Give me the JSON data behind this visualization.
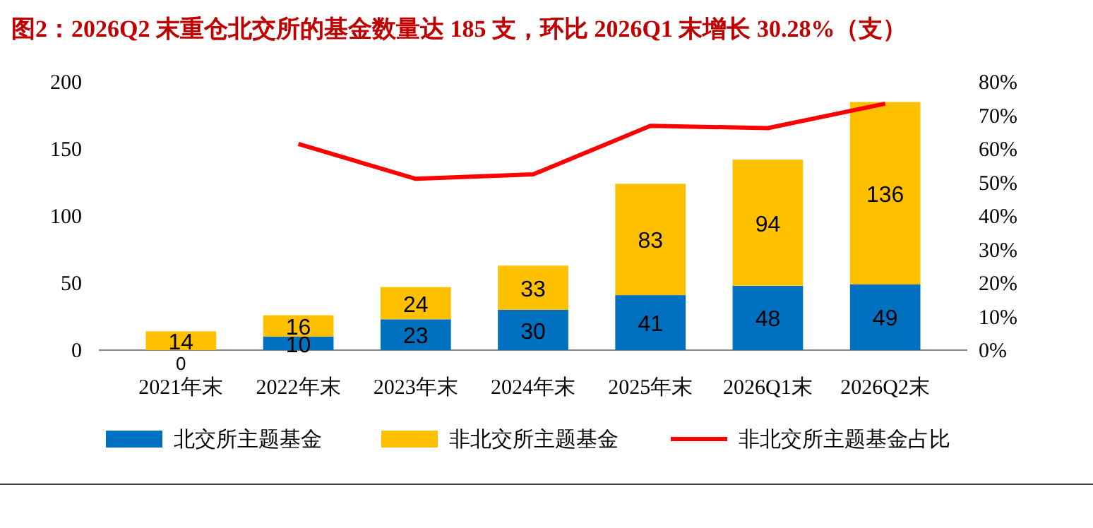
{
  "chart_data": {
    "type": "bar",
    "title": "图2：2026Q2 末重仓北交所的基金数量达 185 支，环比 2026Q1 末增长 30.28%（支）",
    "categories": [
      "2021年末",
      "2022年末",
      "2023年末",
      "2024年末",
      "2025年末",
      "2026Q1末",
      "2026Q2末"
    ],
    "stacked": true,
    "legend": "bottom",
    "grid": false,
    "ylim": [
      0,
      200
    ],
    "yticks": [
      0,
      50,
      100,
      150,
      200
    ],
    "y2lim": [
      0,
      80
    ],
    "y2ticks": [
      {
        "value": 0,
        "label": "0%"
      },
      {
        "value": 10,
        "label": "10%"
      },
      {
        "value": 20,
        "label": "20%"
      },
      {
        "value": 30,
        "label": "30%"
      },
      {
        "value": 40,
        "label": "40%"
      },
      {
        "value": 50,
        "label": "50%"
      },
      {
        "value": 60,
        "label": "60%"
      },
      {
        "value": 70,
        "label": "70%"
      },
      {
        "value": 80,
        "label": "80%"
      }
    ],
    "series": [
      {
        "name": "北交所主题基金",
        "color": "#0070c0",
        "values": [
          0,
          10,
          23,
          30,
          41,
          48,
          49
        ],
        "value_labels": [
          "0",
          "10",
          "23",
          "30",
          "41",
          "48",
          "49"
        ]
      },
      {
        "name": "非北交所主题基金",
        "color": "#ffc000",
        "values": [
          14,
          16,
          24,
          33,
          83,
          94,
          136
        ],
        "value_labels": [
          "14",
          "16",
          "24",
          "33",
          "83",
          "94",
          "136"
        ]
      },
      {
        "name": "非北交所主题基金占比",
        "type": "line",
        "axis": "y2",
        "color": "#ff0000",
        "marker": "none",
        "values": [
          null,
          61.5,
          51.1,
          52.4,
          66.9,
          66.2,
          73.5
        ]
      }
    ]
  }
}
